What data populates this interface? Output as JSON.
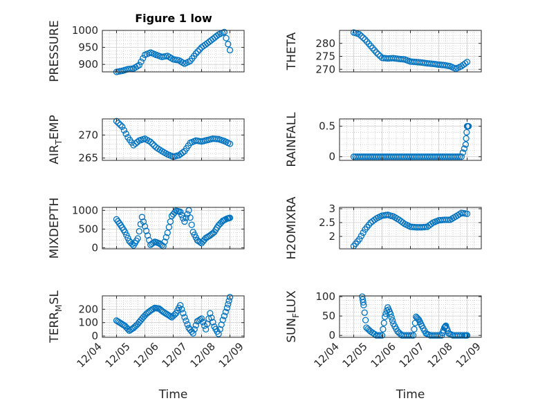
{
  "figure": {
    "title": "Figure 1 low",
    "colors": {
      "marker": "#0072BD",
      "axis": "#262626",
      "grid": "#b4b4b4",
      "background": "#ffffff"
    },
    "marker": "open-circle",
    "grid": true,
    "minor_grid": true
  },
  "chart_data": [
    {
      "id": "pressure",
      "type": "scatter",
      "title": "Figure 1 low",
      "ylabel": "PRESSURE",
      "ylim": [
        878,
        1000
      ],
      "yticks": [
        900,
        950,
        1000
      ],
      "ytick_labels": [
        "900",
        "950",
        "1000"
      ],
      "xlim": [
        0.5,
        5.5
      ],
      "x_tick_labels": [],
      "x": [
        1.0,
        1.2,
        1.4,
        1.6,
        1.8,
        2.0,
        2.2,
        2.4,
        2.6,
        2.8,
        3.0,
        3.2,
        3.4,
        3.6,
        3.8,
        4.0,
        4.2,
        4.4,
        4.6,
        4.8,
        5.0
      ],
      "y": [
        878,
        881,
        886,
        888,
        898,
        928,
        935,
        928,
        922,
        925,
        915,
        912,
        902,
        910,
        932,
        950,
        962,
        975,
        988,
        995,
        942
      ]
    },
    {
      "id": "theta",
      "type": "scatter",
      "ylabel": "THETA",
      "ylim": [
        269,
        285
      ],
      "yticks": [
        270,
        275,
        280
      ],
      "ytick_labels": [
        "270",
        "275",
        "280"
      ],
      "xlim": [
        0.5,
        5.5
      ],
      "x_tick_labels": [],
      "x": [
        1.0,
        1.2,
        1.4,
        1.6,
        1.8,
        2.0,
        2.2,
        2.4,
        2.6,
        2.8,
        3.0,
        3.2,
        3.4,
        3.6,
        3.8,
        4.0,
        4.2,
        4.4,
        4.6,
        4.8,
        5.0
      ],
      "y": [
        284.2,
        283.5,
        281.5,
        279.0,
        276.5,
        274.4,
        274.2,
        274.3,
        274.0,
        273.8,
        273.0,
        272.8,
        272.6,
        272.3,
        272.1,
        271.8,
        271.6,
        271.2,
        270.2,
        271.2,
        272.8
      ]
    },
    {
      "id": "air_temp",
      "type": "scatter",
      "ylabel": "AIR_TEMP",
      "ylim": [
        264.5,
        273.5
      ],
      "yticks": [
        265,
        270
      ],
      "ytick_labels": [
        "265",
        "270"
      ],
      "xlim": [
        0.5,
        5.5
      ],
      "x_tick_labels": [],
      "x": [
        1.0,
        1.2,
        1.4,
        1.6,
        1.8,
        2.0,
        2.2,
        2.4,
        2.6,
        2.8,
        3.0,
        3.2,
        3.4,
        3.6,
        3.8,
        4.0,
        4.2,
        4.4,
        4.6,
        4.8,
        5.0
      ],
      "y": [
        273.0,
        271.8,
        269.5,
        267.8,
        268.8,
        269.2,
        268.5,
        267.3,
        266.5,
        265.8,
        265.3,
        265.6,
        266.5,
        268.3,
        268.8,
        268.6,
        268.9,
        269.2,
        269.1,
        268.7,
        268.1
      ]
    },
    {
      "id": "rainfall",
      "type": "scatter",
      "ylabel": "RAINFALL",
      "ylim": [
        -0.06,
        0.62
      ],
      "yticks": [
        0,
        0.5
      ],
      "ytick_labels": [
        "0",
        "0.5"
      ],
      "xlim": [
        0.5,
        5.5
      ],
      "x_tick_labels": [],
      "x": [
        1.0,
        1.2,
        1.4,
        1.6,
        1.8,
        2.0,
        2.2,
        2.4,
        2.6,
        2.8,
        3.0,
        3.2,
        3.4,
        3.6,
        3.8,
        4.0,
        4.2,
        4.4,
        4.6,
        4.8,
        4.95,
        5.0,
        5.05
      ],
      "y": [
        0,
        0,
        0,
        0,
        0,
        0,
        0,
        0,
        0,
        0,
        0,
        0,
        0,
        0,
        0,
        0,
        0,
        0,
        0,
        0,
        0.2,
        0.5,
        0.5
      ]
    },
    {
      "id": "mixdepth",
      "type": "scatter",
      "ylabel": "MIXDEPTH",
      "ylim": [
        -30,
        1080
      ],
      "yticks": [
        0,
        500,
        1000
      ],
      "ytick_labels": [
        "0",
        "500",
        "1000"
      ],
      "xlim": [
        0.5,
        5.5
      ],
      "x_tick_labels": [],
      "x": [
        1.0,
        1.15,
        1.3,
        1.45,
        1.6,
        1.75,
        1.9,
        2.05,
        2.2,
        2.35,
        2.5,
        2.65,
        2.8,
        2.95,
        3.1,
        3.25,
        3.4,
        3.55,
        3.7,
        3.85,
        4.0,
        4.15,
        4.3,
        4.45,
        4.6,
        4.75,
        4.9,
        5.0
      ],
      "y": [
        760,
        600,
        420,
        180,
        60,
        250,
        820,
        450,
        80,
        160,
        120,
        40,
        400,
        850,
        990,
        960,
        700,
        1000,
        420,
        200,
        120,
        260,
        330,
        420,
        600,
        720,
        780,
        800
      ]
    },
    {
      "id": "h2omixra",
      "type": "scatter",
      "ylabel": "H2OMIXRA",
      "ylim": [
        1.55,
        3.05
      ],
      "yticks": [
        2,
        2.5,
        3
      ],
      "ytick_labels": [
        "2",
        "2.5",
        "3"
      ],
      "xlim": [
        0.5,
        5.5
      ],
      "x_tick_labels": [],
      "x": [
        1.0,
        1.2,
        1.4,
        1.6,
        1.8,
        2.0,
        2.2,
        2.4,
        2.6,
        2.8,
        3.0,
        3.2,
        3.4,
        3.6,
        3.8,
        4.0,
        4.2,
        4.4,
        4.6,
        4.8,
        5.0
      ],
      "y": [
        1.65,
        1.9,
        2.25,
        2.5,
        2.65,
        2.75,
        2.78,
        2.72,
        2.6,
        2.45,
        2.35,
        2.33,
        2.33,
        2.35,
        2.5,
        2.58,
        2.6,
        2.6,
        2.72,
        2.85,
        2.82
      ]
    },
    {
      "id": "terr_msl",
      "type": "scatter",
      "ylabel": "TERR_MSL",
      "ylim": [
        -10,
        300
      ],
      "yticks": [
        0,
        100,
        200
      ],
      "ytick_labels": [
        "0",
        "100",
        "200"
      ],
      "xlim": [
        0.5,
        5.5
      ],
      "x_tick_labels": [
        "12/04",
        "12/05",
        "12/06",
        "12/07",
        "12/08",
        "12/09"
      ],
      "xlabel": "Time",
      "x": [
        1.0,
        1.15,
        1.3,
        1.45,
        1.6,
        1.75,
        1.9,
        2.05,
        2.2,
        2.35,
        2.5,
        2.65,
        2.8,
        2.95,
        3.1,
        3.25,
        3.4,
        3.55,
        3.7,
        3.85,
        4.0,
        4.15,
        4.3,
        4.45,
        4.6,
        4.75,
        4.9,
        5.0
      ],
      "y": [
        115,
        95,
        75,
        40,
        60,
        90,
        130,
        165,
        190,
        210,
        205,
        180,
        160,
        140,
        170,
        230,
        140,
        60,
        20,
        110,
        130,
        50,
        170,
        70,
        15,
        120,
        210,
        290
      ]
    },
    {
      "id": "sun_flux",
      "type": "scatter",
      "ylabel": "SUN_FLUX",
      "ylim": [
        -5,
        102
      ],
      "yticks": [
        0,
        50,
        100
      ],
      "ytick_labels": [
        "0",
        "50",
        "100"
      ],
      "xlim": [
        0.5,
        5.5
      ],
      "x_tick_labels": [
        "12/04",
        "12/05",
        "12/06",
        "12/07",
        "12/08",
        "12/09"
      ],
      "xlabel": "Time",
      "x": [
        1.3,
        1.35,
        1.45,
        1.6,
        1.8,
        2.0,
        2.1,
        2.2,
        2.3,
        2.4,
        2.55,
        2.7,
        2.9,
        3.1,
        3.2,
        3.3,
        3.4,
        3.55,
        3.7,
        3.9,
        4.1,
        4.2,
        4.25,
        4.35,
        4.5,
        4.7,
        4.9,
        5.0
      ],
      "y": [
        100,
        78,
        20,
        10,
        0,
        0,
        48,
        72,
        55,
        30,
        10,
        0,
        0,
        0,
        48,
        40,
        25,
        5,
        0,
        0,
        0,
        20,
        25,
        5,
        0,
        0,
        0,
        0
      ]
    }
  ]
}
